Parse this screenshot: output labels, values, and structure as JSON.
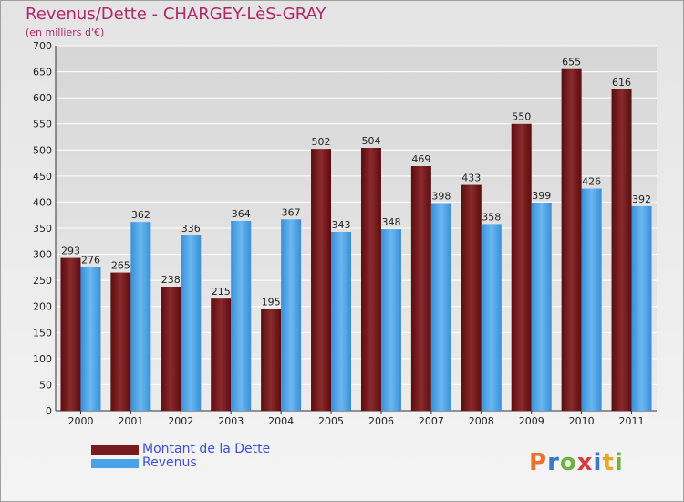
{
  "header": {
    "title": "Revenus/Dette - CHARGEY-LèS-GRAY",
    "subtitle": "(en milliers d'€)"
  },
  "colors": {
    "series_dette": "#7a1a1e",
    "series_revenus": "#4aa3e8",
    "title": "#b0286a",
    "legend_text": "#3c4fd8"
  },
  "chart_data": {
    "type": "bar",
    "categories": [
      "2000",
      "2001",
      "2002",
      "2003",
      "2004",
      "2005",
      "2006",
      "2007",
      "2008",
      "2009",
      "2010",
      "2011"
    ],
    "series": [
      {
        "name": "Montant de la Dette",
        "values": [
          293,
          265,
          238,
          215,
          195,
          502,
          504,
          469,
          433,
          550,
          655,
          616
        ]
      },
      {
        "name": "Revenus",
        "values": [
          276,
          362,
          336,
          364,
          367,
          343,
          348,
          398,
          358,
          399,
          426,
          392
        ]
      }
    ],
    "title": "Revenus/Dette - CHARGEY-LèS-GRAY",
    "ylabel": "(en milliers d'€)",
    "ylim": [
      0,
      700
    ],
    "yticks": [
      0,
      50,
      100,
      150,
      200,
      250,
      300,
      350,
      400,
      450,
      500,
      550,
      600,
      650,
      700
    ],
    "grid": true,
    "legend": "bottom-left"
  },
  "legend": {
    "items": [
      {
        "label": "Montant de la Dette",
        "color": "#7a1a1e"
      },
      {
        "label": "Revenus",
        "color": "#4aa3e8"
      }
    ]
  },
  "logo": {
    "text": "Proxiti",
    "colors": [
      "#e8732a",
      "#3a78c8",
      "#6cb33f",
      "#d93a3a",
      "#3a78c8",
      "#e8a72a",
      "#6cb33f"
    ]
  }
}
